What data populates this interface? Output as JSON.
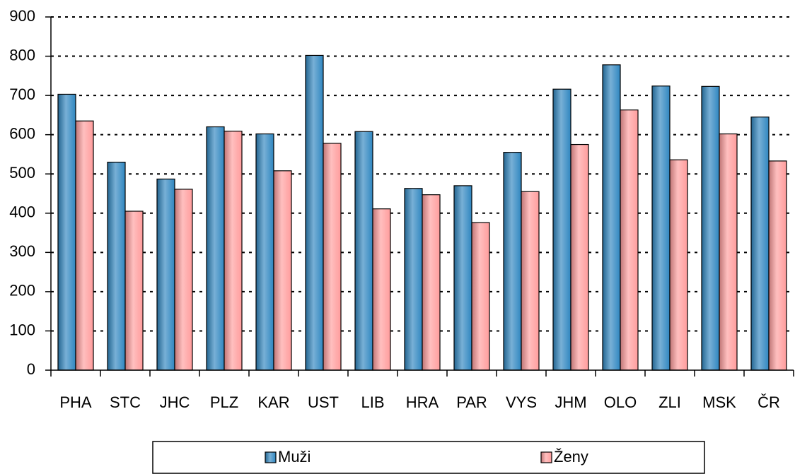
{
  "chart_data": {
    "type": "bar",
    "categories": [
      "PHA",
      "STC",
      "JHC",
      "PLZ",
      "KAR",
      "UST",
      "LIB",
      "HRA",
      "PAR",
      "VYS",
      "JHM",
      "OLO",
      "ZLI",
      "MSK",
      "ČR"
    ],
    "series": [
      {
        "name": "Muži",
        "color": "#2f86c0",
        "values": [
          703,
          530,
          487,
          620,
          602,
          802,
          608,
          463,
          470,
          555,
          716,
          778,
          724,
          723,
          645
        ]
      },
      {
        "name": "Ženy",
        "color": "#ff9c9c",
        "values": [
          635,
          405,
          461,
          609,
          508,
          578,
          411,
          447,
          376,
          455,
          575,
          663,
          536,
          602,
          533
        ]
      }
    ],
    "ylim": [
      0,
      900
    ],
    "yticks": [
      0,
      100,
      200,
      300,
      400,
      500,
      600,
      700,
      800,
      900
    ],
    "grid": true,
    "legend": "bottom"
  }
}
